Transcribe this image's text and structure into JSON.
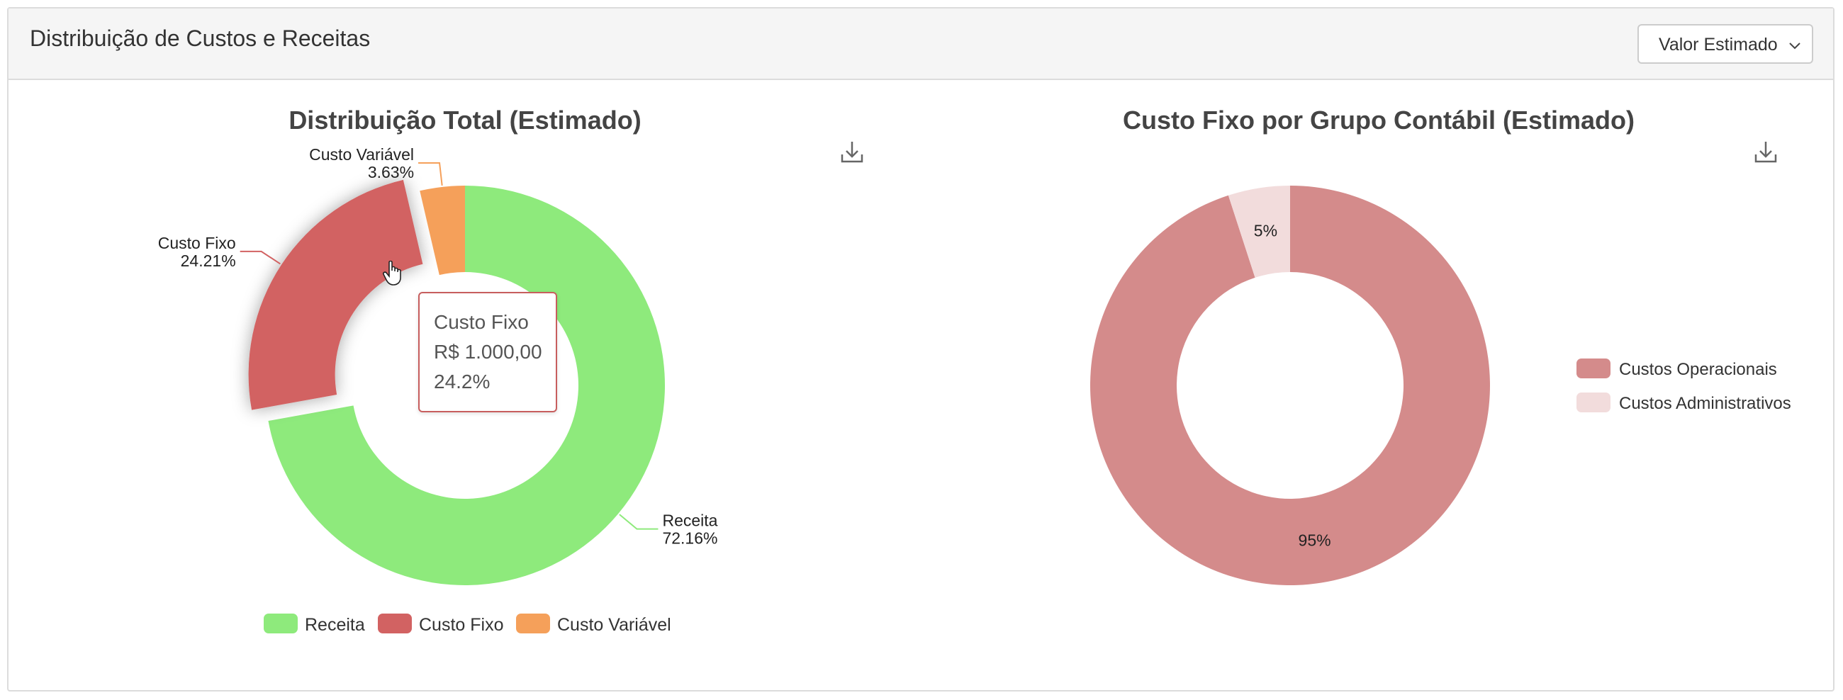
{
  "panel": {
    "title": "Distribuição de Custos e Receitas",
    "select_value": "Valor Estimado"
  },
  "charts_ui": {
    "download_icon": "download-icon",
    "tooltip": {
      "series": "Custo Fixo",
      "value": "R$ 1.000,00",
      "percent": "24.2%"
    }
  },
  "chart_data": [
    {
      "type": "pie",
      "title": "Distribuição Total (Estimado)",
      "labels": [
        "Receita",
        "Custo Fixo",
        "Custo Variável"
      ],
      "values": [
        72.16,
        24.21,
        3.63
      ],
      "data_labels": [
        "72.16%",
        "24.21%",
        "3.63%"
      ],
      "colors": [
        "#8eea7c",
        "#d26262",
        "#f5a05a"
      ],
      "donut": true,
      "legend_position": "bottom",
      "highlighted": "Custo Fixo"
    },
    {
      "type": "pie",
      "title": "Custo Fixo por Grupo Contábil (Estimado)",
      "labels": [
        "Custos Operacionais",
        "Custos Administrativos"
      ],
      "values": [
        95,
        5
      ],
      "data_labels": [
        "95%",
        "5%"
      ],
      "colors": [
        "#d48b8b",
        "#f2dcdc"
      ],
      "donut": true,
      "legend_position": "right"
    }
  ]
}
